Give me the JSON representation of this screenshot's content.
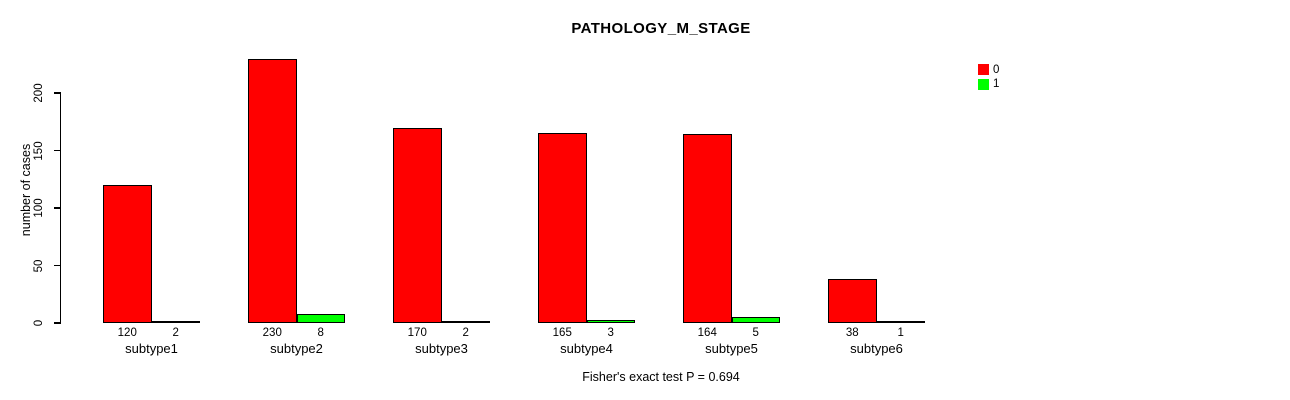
{
  "chart_data": {
    "type": "bar",
    "title": "PATHOLOGY_M_STAGE",
    "ylabel": "number of cases",
    "xlabel": "",
    "categories": [
      "subtype1",
      "subtype2",
      "subtype3",
      "subtype4",
      "subtype5",
      "subtype6"
    ],
    "series": [
      {
        "name": "0",
        "color": "#ff0000",
        "values": [
          120,
          230,
          170,
          165,
          164,
          38
        ]
      },
      {
        "name": "1",
        "color": "#00ff00",
        "values": [
          2,
          8,
          2,
          3,
          5,
          1
        ]
      }
    ],
    "value_labels_shown": true,
    "yticks": [
      0,
      50,
      100,
      150,
      200
    ],
    "ylim": [
      0,
      230
    ],
    "grid": false,
    "legend": {
      "position": "top-right-outside",
      "entries": [
        {
          "label": "0",
          "color": "#ff0000"
        },
        {
          "label": "1",
          "color": "#00ff00"
        }
      ]
    },
    "annotation": "Fisher's exact test P = 0.694",
    "bar_border_color": "#000000",
    "background_color": "#ffffff",
    "tick_label_orientation": "vertical"
  }
}
